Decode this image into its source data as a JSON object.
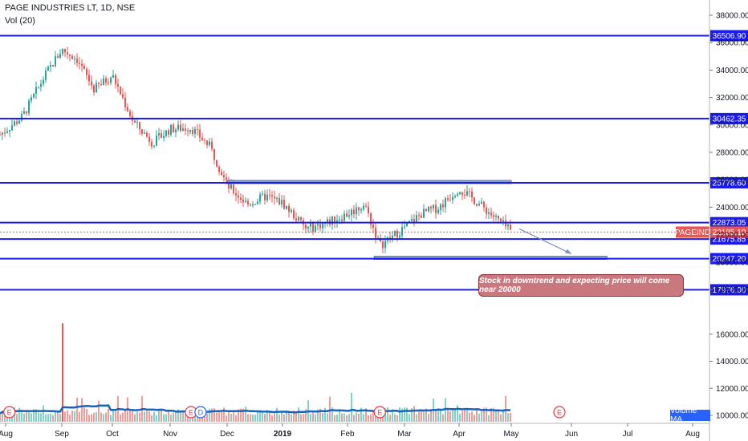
{
  "header": {
    "symbol_line": "PAGE INDUSTRIES LT, 1D, NSE",
    "volume_line": "Vol (20)"
  },
  "annotation": {
    "text": "Stock in downtrend and expecting price will come near 20000"
  },
  "volume_ma_label": "Volume MA",
  "colors": {
    "up": "#26a69a",
    "down": "#ef5350",
    "level_line": "#1a1aeb",
    "box_fill": "#8aa4d8",
    "ma_line": "#1565c0",
    "last_price_badge": "#ef5350",
    "level_badge": "#1a1aeb",
    "annotation_fill": "#c9787d"
  },
  "chart_data": {
    "type": "candlestick",
    "title": "PAGE INDUSTRIES LT, 1D, NSE",
    "x_tick_labels": [
      "Aug",
      "Sep",
      "Oct",
      "Nov",
      "Dec",
      "2019",
      "Feb",
      "Mar",
      "Apr",
      "May",
      "Jun",
      "Jul",
      "Aug"
    ],
    "x_range": [
      "2018-08",
      "2019-08"
    ],
    "price_axis_ticks": [
      38000,
      36000,
      34000,
      32000,
      30000,
      28000,
      26000,
      24000,
      22000,
      20000,
      18000
    ],
    "volume_axis_ticks": [
      16000,
      14000,
      12000,
      10000
    ],
    "horizontal_levels": [
      36506.9,
      30462.35,
      25778.6,
      22873.05,
      21675.85,
      20247.2,
      17976.0
    ],
    "level_labels": [
      "36506.90",
      "30462.35",
      "25778.60",
      "22873.05",
      "21675.85",
      "20247.20",
      "17976.00"
    ],
    "last_price": {
      "symbol": "PAGEIND",
      "value": 22185.1,
      "label": "22185.10"
    },
    "zones": [
      {
        "from": "2018-12",
        "to": "2019-05",
        "price": 25778.6
      },
      {
        "from": "2019-02-15",
        "to": "2019-06-20",
        "price": 20247.2
      }
    ],
    "projection": {
      "from_month": "2019-05",
      "from_price": 22185.1,
      "to_month": "2019-06",
      "to_price": 20247.2
    },
    "monthly_close_path": [
      {
        "month": "2018-07-28",
        "price": 29300
      },
      {
        "month": "2018-08-10",
        "price": 30600
      },
      {
        "month": "2018-08-22",
        "price": 33600
      },
      {
        "month": "2018-09-01",
        "price": 35500
      },
      {
        "month": "2018-09-10",
        "price": 34800
      },
      {
        "month": "2018-09-20",
        "price": 32600
      },
      {
        "month": "2018-10-01",
        "price": 33600
      },
      {
        "month": "2018-10-12",
        "price": 30200
      },
      {
        "month": "2018-10-22",
        "price": 28700
      },
      {
        "month": "2018-11-01",
        "price": 29700
      },
      {
        "month": "2018-11-12",
        "price": 29800
      },
      {
        "month": "2018-11-22",
        "price": 28400
      },
      {
        "month": "2018-12-01",
        "price": 25600
      },
      {
        "month": "2018-12-12",
        "price": 24200
      },
      {
        "month": "2018-12-22",
        "price": 24800
      },
      {
        "month": "2019-01-01",
        "price": 24300
      },
      {
        "month": "2019-01-12",
        "price": 22400
      },
      {
        "month": "2019-01-22",
        "price": 22900
      },
      {
        "month": "2019-02-01",
        "price": 23500
      },
      {
        "month": "2019-02-10",
        "price": 24200
      },
      {
        "month": "2019-02-18",
        "price": 21200
      },
      {
        "month": "2019-02-28",
        "price": 22200
      },
      {
        "month": "2019-03-10",
        "price": 23500
      },
      {
        "month": "2019-03-20",
        "price": 24000
      },
      {
        "month": "2019-04-01",
        "price": 25400
      },
      {
        "month": "2019-04-12",
        "price": 24300
      },
      {
        "month": "2019-04-22",
        "price": 23200
      },
      {
        "month": "2019-05-01",
        "price": 22185
      }
    ],
    "volume": {
      "ma_level_approx": 10500,
      "peak_approx": 16800,
      "peak_date": "2018-09-01"
    },
    "event_markers": [
      {
        "label": "E",
        "date": "2018-08-03"
      },
      {
        "label": "E",
        "date": "2018-11-12"
      },
      {
        "label": "D",
        "date": "2018-11-17"
      },
      {
        "label": "E",
        "date": "2019-02-18"
      },
      {
        "label": "E",
        "date": "2019-05-25"
      }
    ]
  }
}
